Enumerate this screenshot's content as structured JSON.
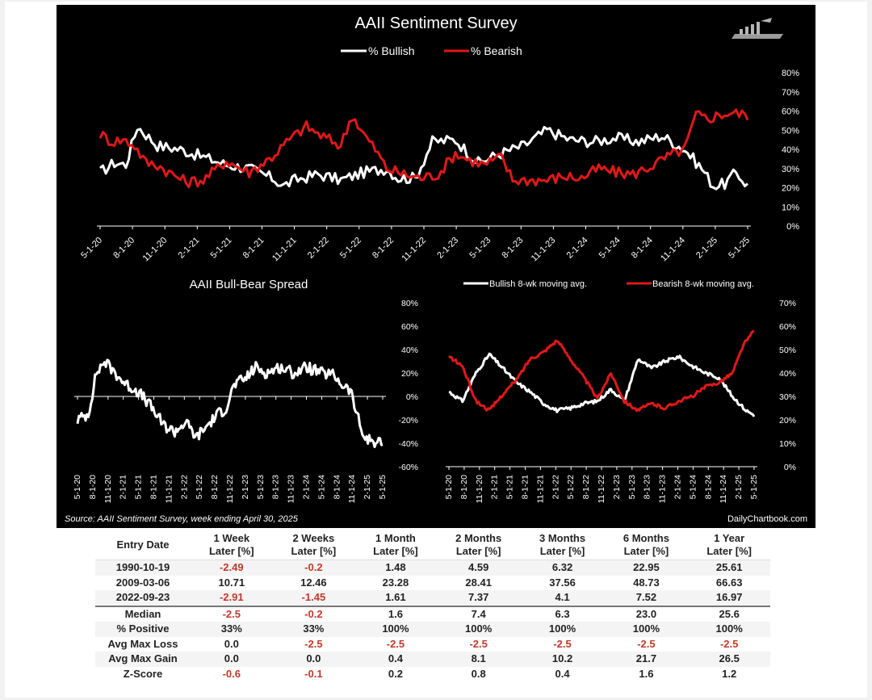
{
  "charts_meta": {
    "source_note": "Source: AAII Sentiment Survey, week ending April 30, 2025",
    "credit": "DailyChartbook.com"
  },
  "chart_data": [
    {
      "type": "line",
      "title": "AAII Sentiment Survey",
      "x_tick_labels": [
        "5-1-20",
        "8-1-20",
        "11-1-20",
        "2-1-21",
        "5-1-21",
        "8-1-21",
        "11-1-21",
        "2-1-22",
        "5-1-22",
        "8-1-22",
        "11-1-22",
        "2-1-23",
        "5-1-23",
        "8-1-23",
        "11-1-23",
        "2-1-24",
        "5-1-24",
        "8-1-24",
        "11-1-24",
        "2-1-25",
        "5-1-25"
      ],
      "y_tick_labels": [
        "0%",
        "10%",
        "20%",
        "30%",
        "40%",
        "50%",
        "60%",
        "70%",
        "80%"
      ],
      "ylim": [
        0,
        80
      ],
      "legend": "top-center",
      "grid": false,
      "series": [
        {
          "name": "% Bullish",
          "color": "#ffffff",
          "anchors": [
            [
              0,
              28
            ],
            [
              5,
              33
            ],
            [
              9,
              32
            ],
            [
              13,
              52
            ],
            [
              20,
              42
            ],
            [
              28,
              40
            ],
            [
              36,
              36
            ],
            [
              44,
              32
            ],
            [
              52,
              30
            ],
            [
              60,
              25
            ],
            [
              64,
              21
            ],
            [
              68,
              24
            ],
            [
              76,
              27
            ],
            [
              84,
              24
            ],
            [
              92,
              28
            ],
            [
              100,
              30
            ],
            [
              104,
              25
            ],
            [
              110,
              25
            ],
            [
              116,
              44
            ],
            [
              124,
              45
            ],
            [
              132,
              33
            ],
            [
              140,
              38
            ],
            [
              148,
              42
            ],
            [
              156,
              50
            ],
            [
              164,
              45
            ],
            [
              172,
              44
            ],
            [
              180,
              46
            ],
            [
              188,
              44
            ],
            [
              196,
              47
            ],
            [
              204,
              40
            ],
            [
              210,
              30
            ],
            [
              214,
              21
            ],
            [
              218,
              22
            ],
            [
              222,
              28
            ],
            [
              226,
              21
            ]
          ]
        },
        {
          "name": "% Bearish",
          "color": "#e01818",
          "anchors": [
            [
              0,
              48
            ],
            [
              4,
              44
            ],
            [
              8,
              45
            ],
            [
              12,
              42
            ],
            [
              16,
              33
            ],
            [
              20,
              32
            ],
            [
              24,
              28
            ],
            [
              30,
              23
            ],
            [
              36,
              24
            ],
            [
              44,
              34
            ],
            [
              52,
              28
            ],
            [
              60,
              36
            ],
            [
              66,
              45
            ],
            [
              72,
              52
            ],
            [
              76,
              48
            ],
            [
              80,
              45
            ],
            [
              84,
              42
            ],
            [
              88,
              58
            ],
            [
              92,
              48
            ],
            [
              96,
              40
            ],
            [
              100,
              30
            ],
            [
              106,
              27
            ],
            [
              112,
              25
            ],
            [
              118,
              27
            ],
            [
              124,
              38
            ],
            [
              128,
              35
            ],
            [
              134,
              32
            ],
            [
              140,
              36
            ],
            [
              144,
              24
            ],
            [
              150,
              24
            ],
            [
              156,
              24
            ],
            [
              162,
              26
            ],
            [
              168,
              25
            ],
            [
              174,
              30
            ],
            [
              180,
              28
            ],
            [
              186,
              27
            ],
            [
              192,
              31
            ],
            [
              198,
              36
            ],
            [
              202,
              39
            ],
            [
              204,
              40
            ],
            [
              208,
              58
            ],
            [
              212,
              56
            ],
            [
              216,
              58
            ],
            [
              220,
              59
            ],
            [
              226,
              58
            ]
          ]
        }
      ]
    },
    {
      "type": "line",
      "title": "AAII Bull-Bear Spread",
      "x_tick_labels": [
        "5-1-20",
        "8-1-20",
        "11-1-20",
        "2-1-21",
        "5-1-21",
        "8-1-21",
        "11-1-21",
        "2-1-22",
        "5-1-22",
        "8-1-22",
        "11-1-22",
        "2-1-23",
        "5-1-23",
        "8-1-23",
        "11-1-23",
        "2-1-24",
        "5-1-24",
        "8-1-24",
        "11-1-24",
        "2-1-25",
        "5-1-25"
      ],
      "y_tick_labels": [
        "-60%",
        "-40%",
        "-20%",
        "0%",
        "20%",
        "40%",
        "60%",
        "80%"
      ],
      "ylim": [
        -60,
        80
      ],
      "series": [
        {
          "name": "",
          "color": "#ffffff",
          "anchors": [
            [
              0,
              -20
            ],
            [
              8,
              -15
            ],
            [
              14,
              20
            ],
            [
              20,
              30
            ],
            [
              28,
              20
            ],
            [
              36,
              10
            ],
            [
              44,
              5
            ],
            [
              52,
              -5
            ],
            [
              58,
              -15
            ],
            [
              64,
              -25
            ],
            [
              72,
              -30
            ],
            [
              80,
              -22
            ],
            [
              88,
              -35
            ],
            [
              96,
              -25
            ],
            [
              104,
              -15
            ],
            [
              110,
              -10
            ],
            [
              116,
              10
            ],
            [
              124,
              15
            ],
            [
              132,
              25
            ],
            [
              140,
              20
            ],
            [
              150,
              25
            ],
            [
              160,
              20
            ],
            [
              170,
              25
            ],
            [
              180,
              20
            ],
            [
              190,
              18
            ],
            [
              196,
              10
            ],
            [
              202,
              5
            ],
            [
              208,
              -20
            ],
            [
              212,
              -35
            ],
            [
              218,
              -38
            ],
            [
              226,
              -40
            ]
          ]
        }
      ]
    },
    {
      "type": "line",
      "title": "",
      "x_tick_labels": [
        "5-1-20",
        "8-1-20",
        "11-1-20",
        "2-1-21",
        "5-1-21",
        "8-1-21",
        "11-1-21",
        "2-1-22",
        "5-1-22",
        "8-1-22",
        "11-1-22",
        "2-1-23",
        "5-1-23",
        "8-1-23",
        "11-1-23",
        "2-1-24",
        "5-1-24",
        "8-1-24",
        "11-1-24",
        "2-1-25",
        "5-1-25"
      ],
      "y_tick_labels": [
        "0%",
        "10%",
        "20%",
        "30%",
        "40%",
        "50%",
        "60%",
        "70%"
      ],
      "ylim": [
        0,
        70
      ],
      "legend": "top",
      "series": [
        {
          "name": "Bullish 8-wk moving avg.",
          "color": "#ffffff",
          "anchors": [
            [
              0,
              32
            ],
            [
              10,
              28
            ],
            [
              20,
              40
            ],
            [
              30,
              48
            ],
            [
              40,
              42
            ],
            [
              50,
              36
            ],
            [
              60,
              32
            ],
            [
              70,
              27
            ],
            [
              80,
              24
            ],
            [
              90,
              25
            ],
            [
              100,
              27
            ],
            [
              110,
              28
            ],
            [
              120,
              33
            ],
            [
              130,
              28
            ],
            [
              140,
              46
            ],
            [
              150,
              42
            ],
            [
              160,
              45
            ],
            [
              170,
              47
            ],
            [
              180,
              43
            ],
            [
              190,
              40
            ],
            [
              200,
              38
            ],
            [
              210,
              30
            ],
            [
              220,
              24
            ],
            [
              226,
              22
            ]
          ]
        },
        {
          "name": "Bearish 8-wk moving avg.",
          "color": "#e01818",
          "anchors": [
            [
              0,
              47
            ],
            [
              10,
              43
            ],
            [
              20,
              28
            ],
            [
              30,
              24
            ],
            [
              40,
              31
            ],
            [
              50,
              37
            ],
            [
              60,
              46
            ],
            [
              70,
              49
            ],
            [
              80,
              54
            ],
            [
              90,
              46
            ],
            [
              100,
              38
            ],
            [
              110,
              29
            ],
            [
              120,
              40
            ],
            [
              130,
              28
            ],
            [
              140,
              24
            ],
            [
              150,
              27
            ],
            [
              160,
              25
            ],
            [
              170,
              28
            ],
            [
              180,
              30
            ],
            [
              190,
              34
            ],
            [
              200,
              36
            ],
            [
              210,
              40
            ],
            [
              218,
              52
            ],
            [
              226,
              58
            ]
          ]
        }
      ]
    },
    {
      "type": "table",
      "columns": [
        "Entry Date",
        "1 Week Later [%]",
        "2 Weeks Later [%]",
        "1 Month Later [%]",
        "2 Months Later [%]",
        "3 Months Later [%]",
        "6 Months Later [%]",
        "1 Year Later [%]"
      ],
      "rows": [
        [
          "1990-10-19",
          "-2.49",
          "-0.2",
          "1.48",
          "4.59",
          "6.32",
          "22.95",
          "25.61"
        ],
        [
          "2009-03-06",
          "10.71",
          "12.46",
          "23.28",
          "28.41",
          "37.56",
          "48.73",
          "66.63"
        ],
        [
          "2022-09-23",
          "-2.91",
          "-1.45",
          "1.61",
          "7.37",
          "4.1",
          "7.52",
          "16.97"
        ],
        [
          "Median",
          "-2.5",
          "-0.2",
          "1.6",
          "7.4",
          "6.3",
          "23.0",
          "25.6"
        ],
        [
          "% Positive",
          "33%",
          "33%",
          "100%",
          "100%",
          "100%",
          "100%",
          "100%"
        ],
        [
          "Avg Max Loss",
          "0.0",
          "-2.5",
          "-2.5",
          "-2.5",
          "-2.5",
          "-2.5",
          "-2.5"
        ],
        [
          "Avg Max Gain",
          "0.0",
          "0.0",
          "0.4",
          "8.1",
          "10.2",
          "21.7",
          "26.5"
        ],
        [
          "Z-Score",
          "-0.6",
          "-0.1",
          "0.2",
          "0.8",
          "0.4",
          "1.6",
          "1.2"
        ]
      ]
    }
  ],
  "table_header_lines": [
    [
      "Entry Date",
      ""
    ],
    [
      "1 Week",
      "Later [%]"
    ],
    [
      "2 Weeks",
      "Later [%]"
    ],
    [
      "1 Month",
      "Later [%]"
    ],
    [
      "2 Months",
      "Later [%]"
    ],
    [
      "3 Months",
      "Later [%]"
    ],
    [
      "6 Months",
      "Later [%]"
    ],
    [
      "1 Year",
      "Later [%]"
    ]
  ]
}
